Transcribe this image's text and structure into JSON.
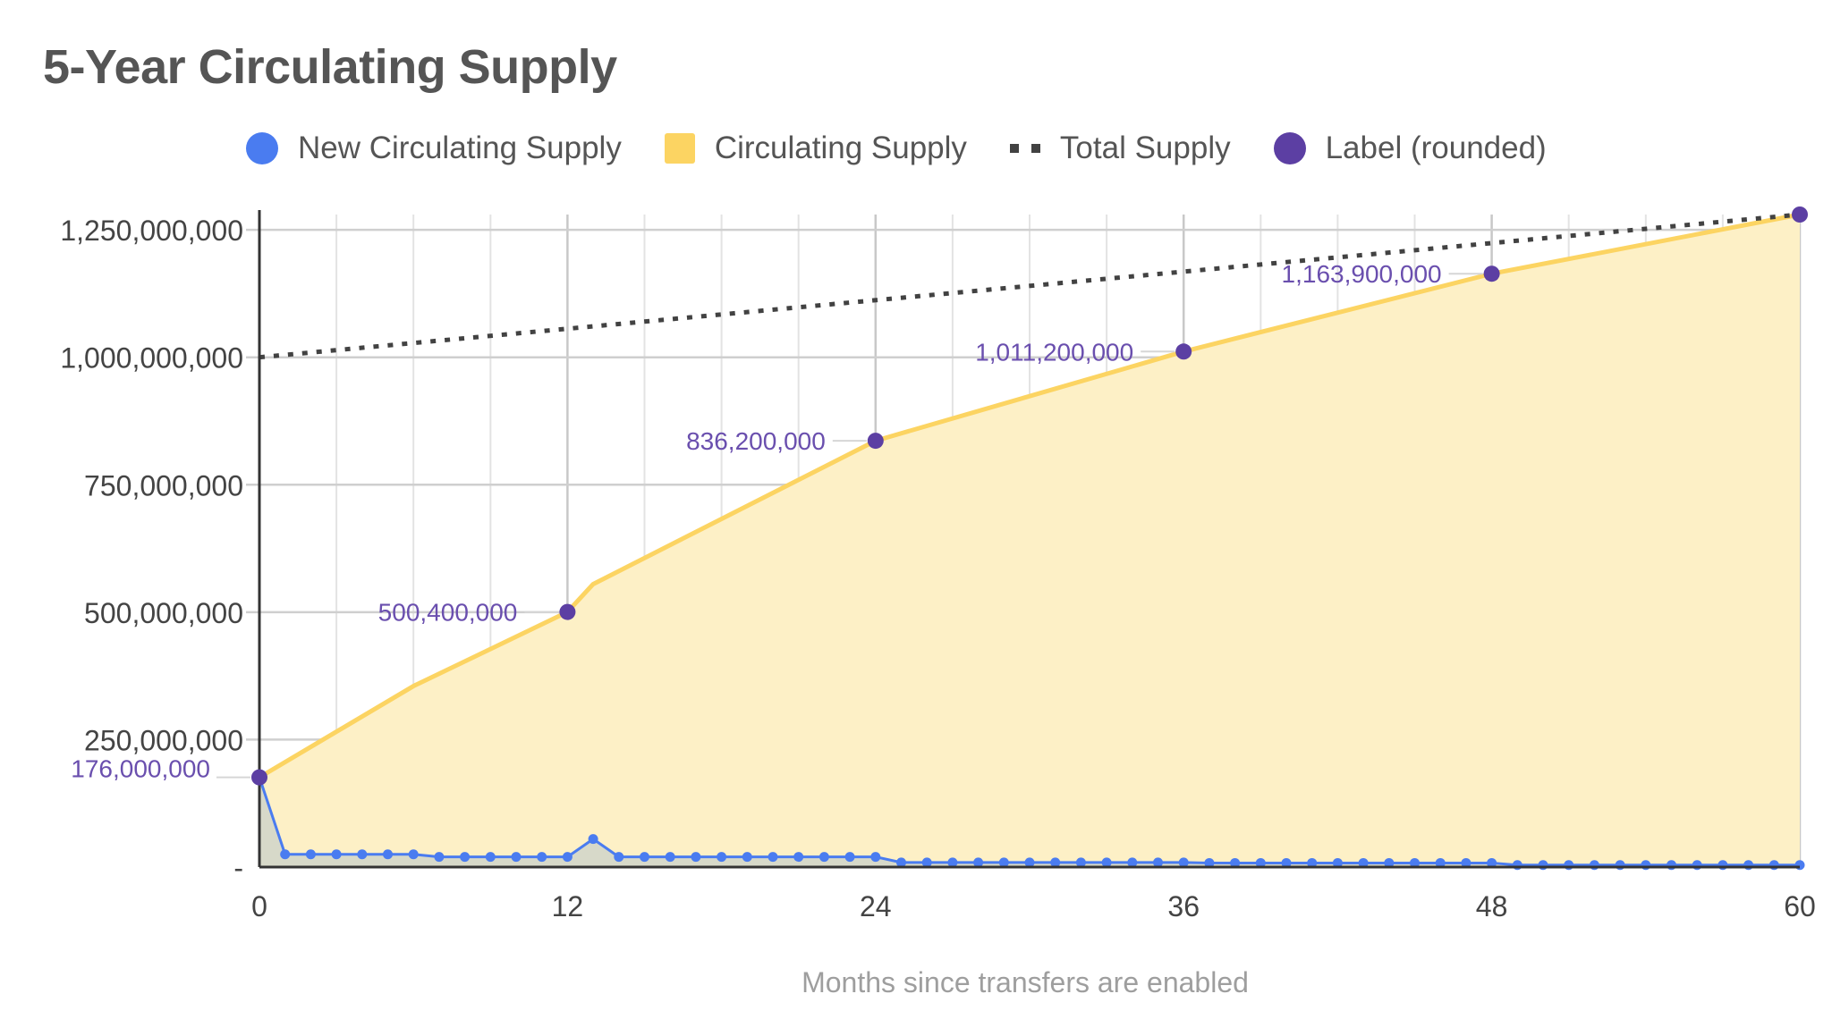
{
  "chart_data": {
    "type": "area",
    "title": "5-Year Circulating Supply",
    "xlabel": "Months since transfers are enabled",
    "ylabel": "",
    "xlim": [
      0,
      60
    ],
    "ylim": [
      0,
      1250000000
    ],
    "x_ticks": [
      "0",
      "12",
      "24",
      "36",
      "48",
      "60"
    ],
    "y_ticks": [
      "-",
      "250,000,000",
      "500,000,000",
      "750,000,000",
      "1,000,000,000",
      "1,250,000,000"
    ],
    "grid": true,
    "legend_position": "top",
    "legend": [
      {
        "label": "New Circulating Supply",
        "symbol": "circle",
        "color": "#4a7cf0"
      },
      {
        "label": "Circulating Supply",
        "symbol": "square",
        "color": "#fcd462"
      },
      {
        "label": "Total Supply",
        "symbol": "dots",
        "color": "#424242"
      },
      {
        "label": "Label (rounded)",
        "symbol": "circle",
        "color": "#5c3fa3"
      }
    ],
    "series": [
      {
        "name": "New Circulating Supply",
        "color": "#4a7cf0",
        "x": [
          0,
          1,
          2,
          3,
          4,
          5,
          6,
          7,
          8,
          9,
          10,
          11,
          12,
          13,
          14,
          15,
          16,
          17,
          18,
          19,
          20,
          21,
          22,
          23,
          24,
          25,
          26,
          27,
          28,
          29,
          30,
          31,
          32,
          33,
          34,
          35,
          36,
          37,
          38,
          39,
          40,
          41,
          42,
          43,
          44,
          45,
          46,
          47,
          48,
          49,
          50,
          51,
          52,
          53,
          54,
          55,
          56,
          57,
          58,
          59,
          60
        ],
        "values": [
          176000000,
          25000000,
          25000000,
          25000000,
          25000000,
          25000000,
          25000000,
          20000000,
          20000000,
          20000000,
          20000000,
          20000000,
          20000000,
          55000000,
          20000000,
          20000000,
          20000000,
          20000000,
          20000000,
          20000000,
          20000000,
          20000000,
          20000000,
          20000000,
          20000000,
          9000000,
          9000000,
          9000000,
          9000000,
          9000000,
          9000000,
          9000000,
          9000000,
          9000000,
          9000000,
          9000000,
          9000000,
          8000000,
          8000000,
          8000000,
          8000000,
          8000000,
          8000000,
          8000000,
          8000000,
          8000000,
          8000000,
          8000000,
          8000000,
          4000000,
          4000000,
          4000000,
          4000000,
          4000000,
          4000000,
          4000000,
          4000000,
          4000000,
          4000000,
          4000000,
          4000000
        ]
      },
      {
        "name": "Circulating Supply",
        "color": "#fcd462",
        "x": [
          0,
          6,
          12,
          13,
          24,
          36,
          48,
          60
        ],
        "values": [
          176000000,
          355000000,
          500400000,
          555000000,
          836200000,
          1011200000,
          1163900000,
          1280000000
        ]
      },
      {
        "name": "Total Supply",
        "color": "#424242",
        "x": [
          0,
          60
        ],
        "values": [
          1000000000,
          1280000000
        ]
      },
      {
        "name": "Label (rounded)",
        "color": "#5c3fa3",
        "x": [
          0,
          12,
          24,
          36,
          48,
          60
        ],
        "values": [
          176000000,
          500400000,
          836200000,
          1011200000,
          1163900000,
          1280000000
        ],
        "labels": [
          "176,000,000",
          "500,400,000",
          "836,200,000",
          "1,011,200,000",
          "1,163,900,000",
          ""
        ]
      }
    ]
  }
}
